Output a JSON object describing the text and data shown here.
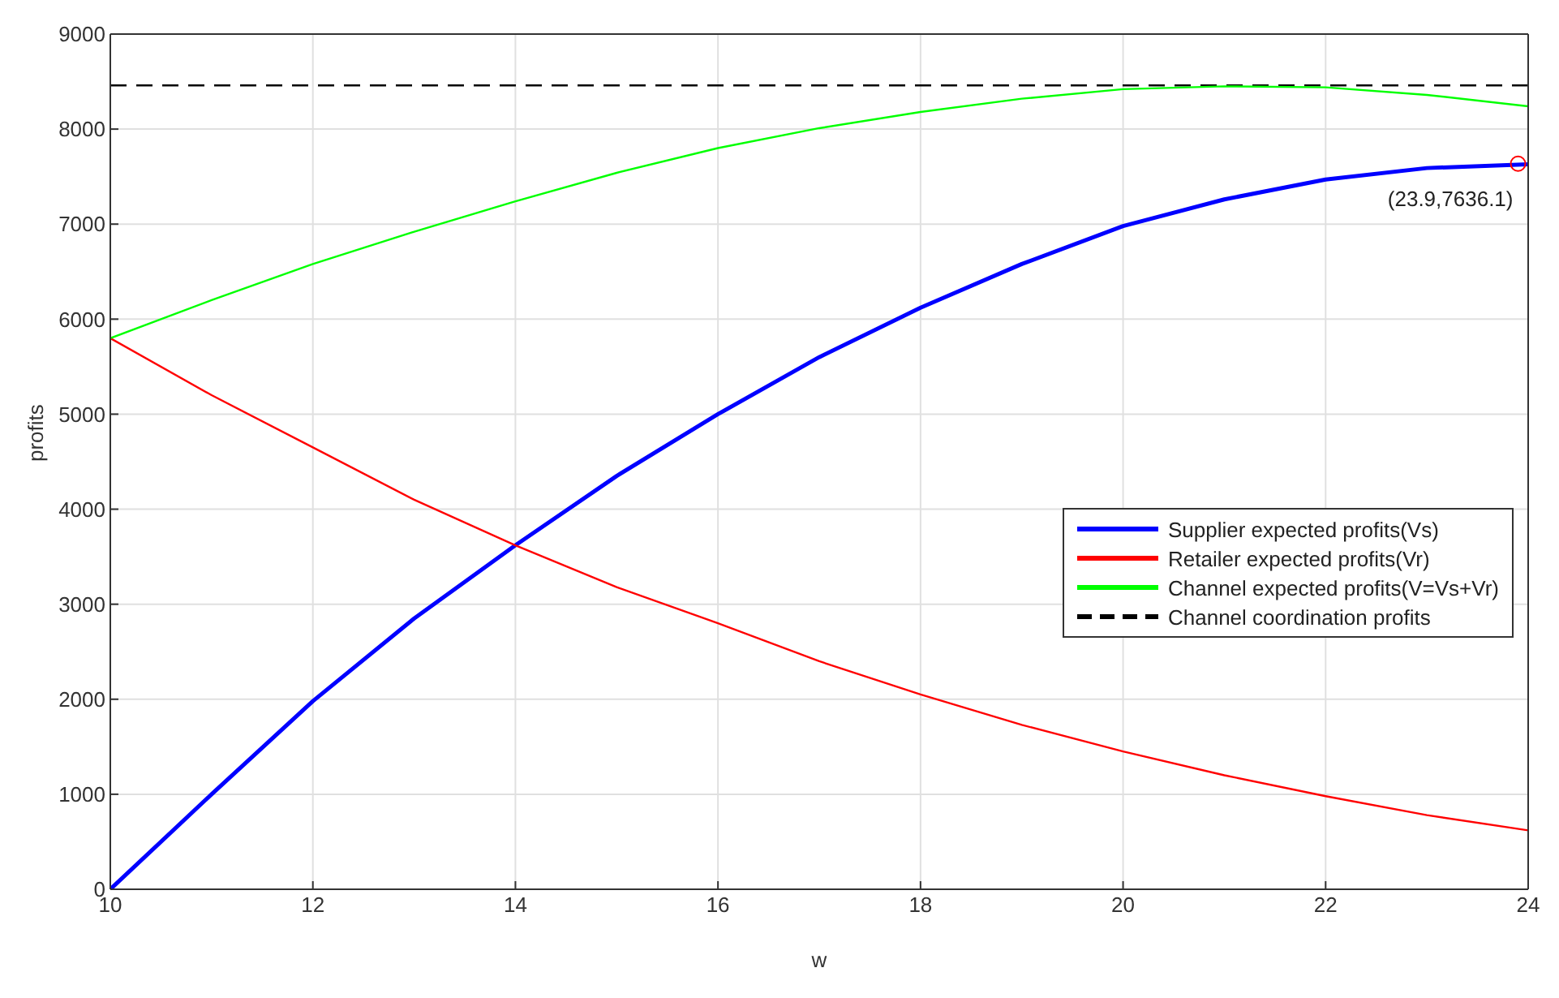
{
  "chart_data": {
    "type": "line",
    "xlabel": "w",
    "ylabel": "profits",
    "xlim": [
      10,
      24
    ],
    "xticks": [
      10,
      12,
      14,
      16,
      18,
      20,
      22,
      24
    ],
    "ylim": [
      0,
      9000
    ],
    "yticks": [
      0,
      1000,
      2000,
      3000,
      4000,
      5000,
      6000,
      7000,
      8000,
      9000
    ],
    "grid": true,
    "legend": "right",
    "line_style": "solid",
    "marker": "none",
    "x": [
      10,
      11,
      12,
      13,
      14,
      15,
      16,
      17,
      18,
      19,
      20,
      21,
      22,
      23,
      24
    ],
    "series": [
      {
        "name": "Supplier expected profits(Vs)",
        "color": "#0000ff",
        "values": [
          0,
          1000,
          1980,
          2850,
          3620,
          4350,
          5000,
          5600,
          6120,
          6580,
          6980,
          7260,
          7470,
          7590,
          7630
        ]
      },
      {
        "name": "Retailer expected profits(Vr)",
        "color": "#ff0000",
        "values": [
          5800,
          5200,
          4650,
          4100,
          3620,
          3180,
          2800,
          2400,
          2050,
          1730,
          1450,
          1200,
          980,
          780,
          620
        ]
      },
      {
        "name": "Channel expected profits(V=Vs+Vr)",
        "color": "#00ff00",
        "values": [
          5800,
          6200,
          6580,
          6920,
          7240,
          7540,
          7800,
          8010,
          8180,
          8320,
          8420,
          8450,
          8440,
          8360,
          8240
        ]
      },
      {
        "type": "scatter",
        "marker": "circle",
        "color": "#ff0000",
        "x": [
          23.9
        ],
        "values": [
          7636.1
        ]
      }
    ],
    "ref_lines": [
      {
        "axis": "y",
        "value": 8460,
        "label": "Channel coordination profits",
        "color": "#000000",
        "line_style": "dashed"
      }
    ],
    "annotations": [
      {
        "text": "(23.9,7636.1)",
        "x": 23.9,
        "y": 7636.1
      }
    ]
  }
}
